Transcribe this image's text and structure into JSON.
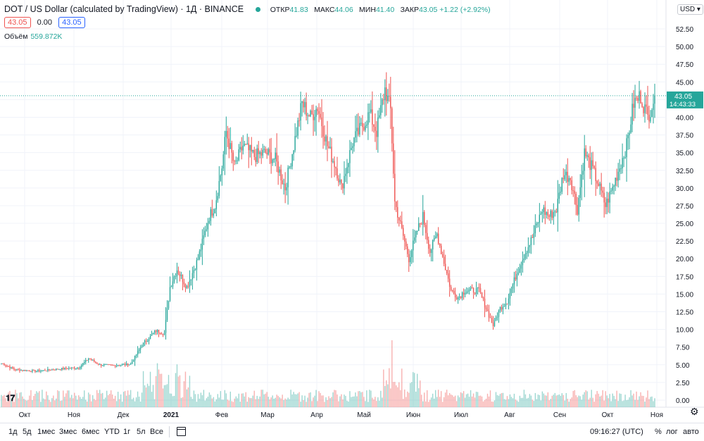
{
  "header": {
    "title": "DOT / US Dollar (calculated by TradingView) · 1Д · BINANCE",
    "ohlc": [
      {
        "label": "ОТКР",
        "value": "41.83"
      },
      {
        "label": "МАКС",
        "value": "44.06"
      },
      {
        "label": "МИН",
        "value": "41.40"
      },
      {
        "label": "ЗАКР",
        "value": "43.05 +1.22 (+2.92%)"
      }
    ],
    "bid": "43.05",
    "spread": "0.00",
    "ask": "43.05",
    "volume_label": "Объём",
    "volume_value": "559.872K",
    "currency": "USD",
    "last_price_label": "43.05",
    "countdown": "14:43:33"
  },
  "bottom": {
    "ranges": [
      "1д",
      "5д",
      "1мес",
      "3мес",
      "6мес",
      "YTD",
      "1г",
      "5л",
      "Все"
    ],
    "clock": "09:16:27 (UTC)",
    "options": [
      "%",
      "лог",
      "авто"
    ]
  },
  "colors": {
    "up": "#26a69a",
    "down": "#ef5350",
    "grid": "#f0f3fa",
    "price_line": "#26a69a"
  },
  "chart_data": {
    "type": "candlestick",
    "symbol": "DOTUSD",
    "interval": "1D",
    "ylim": [
      -0.5,
      55
    ],
    "y_ticks": [
      "0.00",
      "2.50",
      "5.00",
      "7.50",
      "10.00",
      "12.50",
      "15.00",
      "17.50",
      "20.00",
      "22.50",
      "25.00",
      "27.50",
      "30.00",
      "32.50",
      "35.00",
      "37.50",
      "40.00",
      "42.50",
      "45.00",
      "47.50",
      "50.00",
      "52.50"
    ],
    "x_ticks": [
      "Окт",
      "Ноя",
      "Дек",
      "2021",
      "Фев",
      "Мар",
      "Апр",
      "Май",
      "Июн",
      "Июл",
      "Авг",
      "Сен",
      "Окт",
      "Ноя"
    ],
    "last_close": 43.05,
    "close_anchors": [
      [
        0,
        5.2
      ],
      [
        10,
        4.3
      ],
      [
        25,
        4.1
      ],
      [
        40,
        4.4
      ],
      [
        55,
        4.6
      ],
      [
        62,
        5.9
      ],
      [
        70,
        5.0
      ],
      [
        80,
        4.9
      ],
      [
        92,
        5.1
      ],
      [
        100,
        7.8
      ],
      [
        110,
        9.8
      ],
      [
        116,
        9.5
      ],
      [
        120,
        16.0
      ],
      [
        125,
        18.5
      ],
      [
        132,
        16.0
      ],
      [
        140,
        20.0
      ],
      [
        148,
        26.0
      ],
      [
        152,
        27.5
      ],
      [
        157,
        33.0
      ],
      [
        160,
        38.0
      ],
      [
        166,
        33.0
      ],
      [
        172,
        36.0
      ],
      [
        180,
        34.5
      ],
      [
        188,
        35.0
      ],
      [
        195,
        34.0
      ],
      [
        202,
        30.0
      ],
      [
        208,
        36.0
      ],
      [
        214,
        42.0
      ],
      [
        220,
        40.0
      ],
      [
        225,
        41.5
      ],
      [
        232,
        36.0
      ],
      [
        238,
        33.0
      ],
      [
        242,
        30.0
      ],
      [
        250,
        36.5
      ],
      [
        256,
        38.5
      ],
      [
        262,
        40.5
      ],
      [
        267,
        38.0
      ],
      [
        270,
        41.0
      ],
      [
        273,
        44.0
      ],
      [
        277,
        41.0
      ],
      [
        280,
        28.0
      ],
      [
        285,
        24.0
      ],
      [
        290,
        20.0
      ],
      [
        296,
        24.0
      ],
      [
        300,
        26.0
      ],
      [
        305,
        21.0
      ],
      [
        310,
        23.5
      ],
      [
        315,
        19.5
      ],
      [
        320,
        15.5
      ],
      [
        325,
        14.5
      ],
      [
        330,
        15.5
      ],
      [
        340,
        15.5
      ],
      [
        347,
        12.0
      ],
      [
        350,
        10.6
      ],
      [
        355,
        13.0
      ],
      [
        360,
        14.0
      ],
      [
        366,
        17.5
      ],
      [
        372,
        20.5
      ],
      [
        378,
        23.0
      ],
      [
        385,
        27.0
      ],
      [
        390,
        26.0
      ],
      [
        395,
        27.0
      ],
      [
        400,
        32.0
      ],
      [
        405,
        31.5
      ],
      [
        410,
        27.0
      ],
      [
        415,
        35.0
      ],
      [
        420,
        33.0
      ],
      [
        425,
        30.5
      ],
      [
        430,
        27.5
      ],
      [
        435,
        30.0
      ],
      [
        440,
        33.0
      ],
      [
        445,
        36.0
      ],
      [
        450,
        42.0
      ],
      [
        455,
        43.0
      ],
      [
        460,
        40.0
      ],
      [
        465,
        43.05
      ]
    ],
    "volume_axis": "relative"
  }
}
